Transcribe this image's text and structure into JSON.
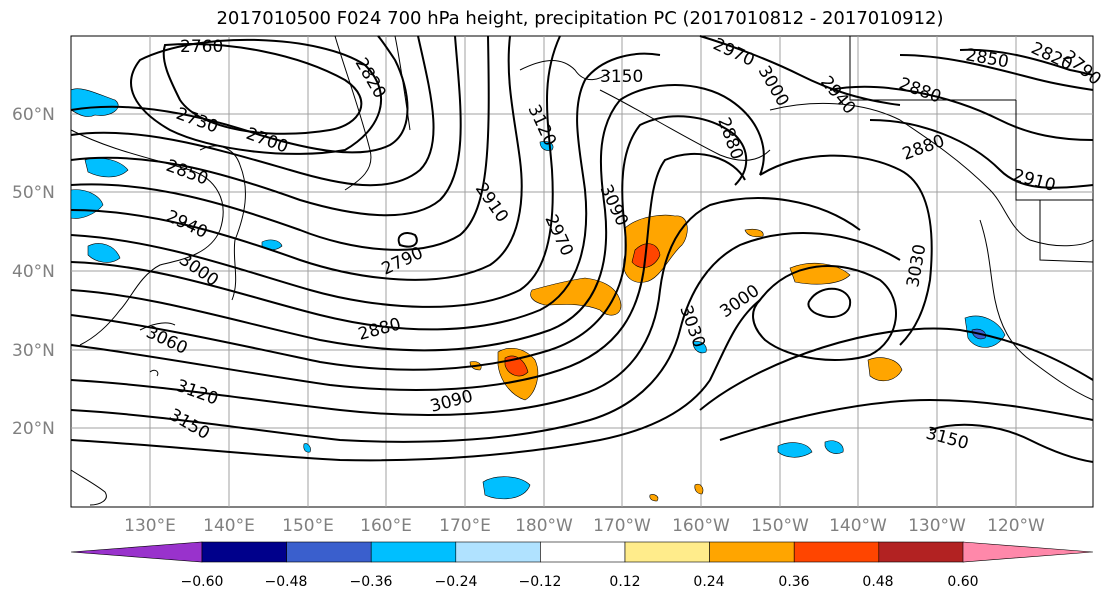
{
  "title": "2017010500 F024 700 hPa height, precipitation PC (2017010812 - 2017010912)",
  "lat_labels": [
    "60°N",
    "50°N",
    "40°N",
    "30°N",
    "20°N"
  ],
  "lon_labels": [
    "130°E",
    "140°E",
    "150°E",
    "160°E",
    "170°E",
    "180°W",
    "170°W",
    "160°W",
    "150°W",
    "140°W",
    "130°W",
    "120°W"
  ],
  "contour_labels": [
    "2760",
    "2820",
    "2730",
    "2700",
    "2850",
    "2940",
    "3000",
    "3060",
    "3120",
    "3150",
    "2790",
    "2910",
    "2970",
    "2880",
    "3090",
    "3150",
    "3120",
    "3090",
    "3030",
    "2970",
    "3000",
    "2880",
    "2940",
    "2850",
    "2820",
    "2790",
    "2880",
    "2910",
    "3030",
    "3000",
    "3030",
    "3150"
  ],
  "colorbar": {
    "ticks": [
      "−0.60",
      "−0.48",
      "−0.36",
      "−0.24",
      "−0.12",
      "0.12",
      "0.24",
      "0.36",
      "0.48",
      "0.60"
    ],
    "colors": [
      "#9932cc",
      "#00008b",
      "#3a5fcd",
      "#00bfff",
      "#b0e2ff",
      "#ffffff",
      "#ffec8b",
      "#ffa500",
      "#ff4500",
      "#b22222",
      "#ff88aa"
    ]
  },
  "colors": {
    "contour": "#000000",
    "grid": "#a0a0a0",
    "coast": "#000000",
    "neg_light": "#87ceeb",
    "neg_mid": "#00bfff",
    "pos_light": "#ffa500",
    "pos_strong": "#ff4500"
  }
}
